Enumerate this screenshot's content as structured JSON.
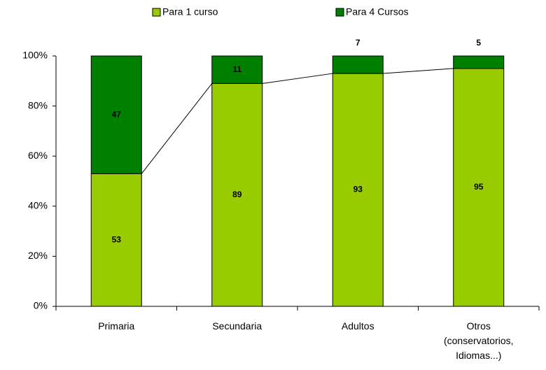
{
  "chart_data": {
    "type": "stacked_bar_100",
    "categories": [
      "Primaria",
      "Secundaria",
      "Adultos",
      "Otros (conservatorios, Idiomas...)"
    ],
    "series": [
      {
        "name": "Para 1 curso",
        "color": "#99cc00",
        "values": [
          53,
          89,
          93,
          95
        ]
      },
      {
        "name": "Para 4 Cursos",
        "color": "#008000",
        "values": [
          47,
          11,
          7,
          5
        ]
      }
    ],
    "ylim": [
      0,
      100
    ],
    "yticks": [
      {
        "value": 0,
        "label": "0%"
      },
      {
        "value": 20,
        "label": "20%"
      },
      {
        "value": 40,
        "label": "40%"
      },
      {
        "value": 60,
        "label": "60%"
      },
      {
        "value": 80,
        "label": "80%"
      },
      {
        "value": 100,
        "label": "100%"
      }
    ],
    "legend": "top",
    "series_lines": true
  }
}
